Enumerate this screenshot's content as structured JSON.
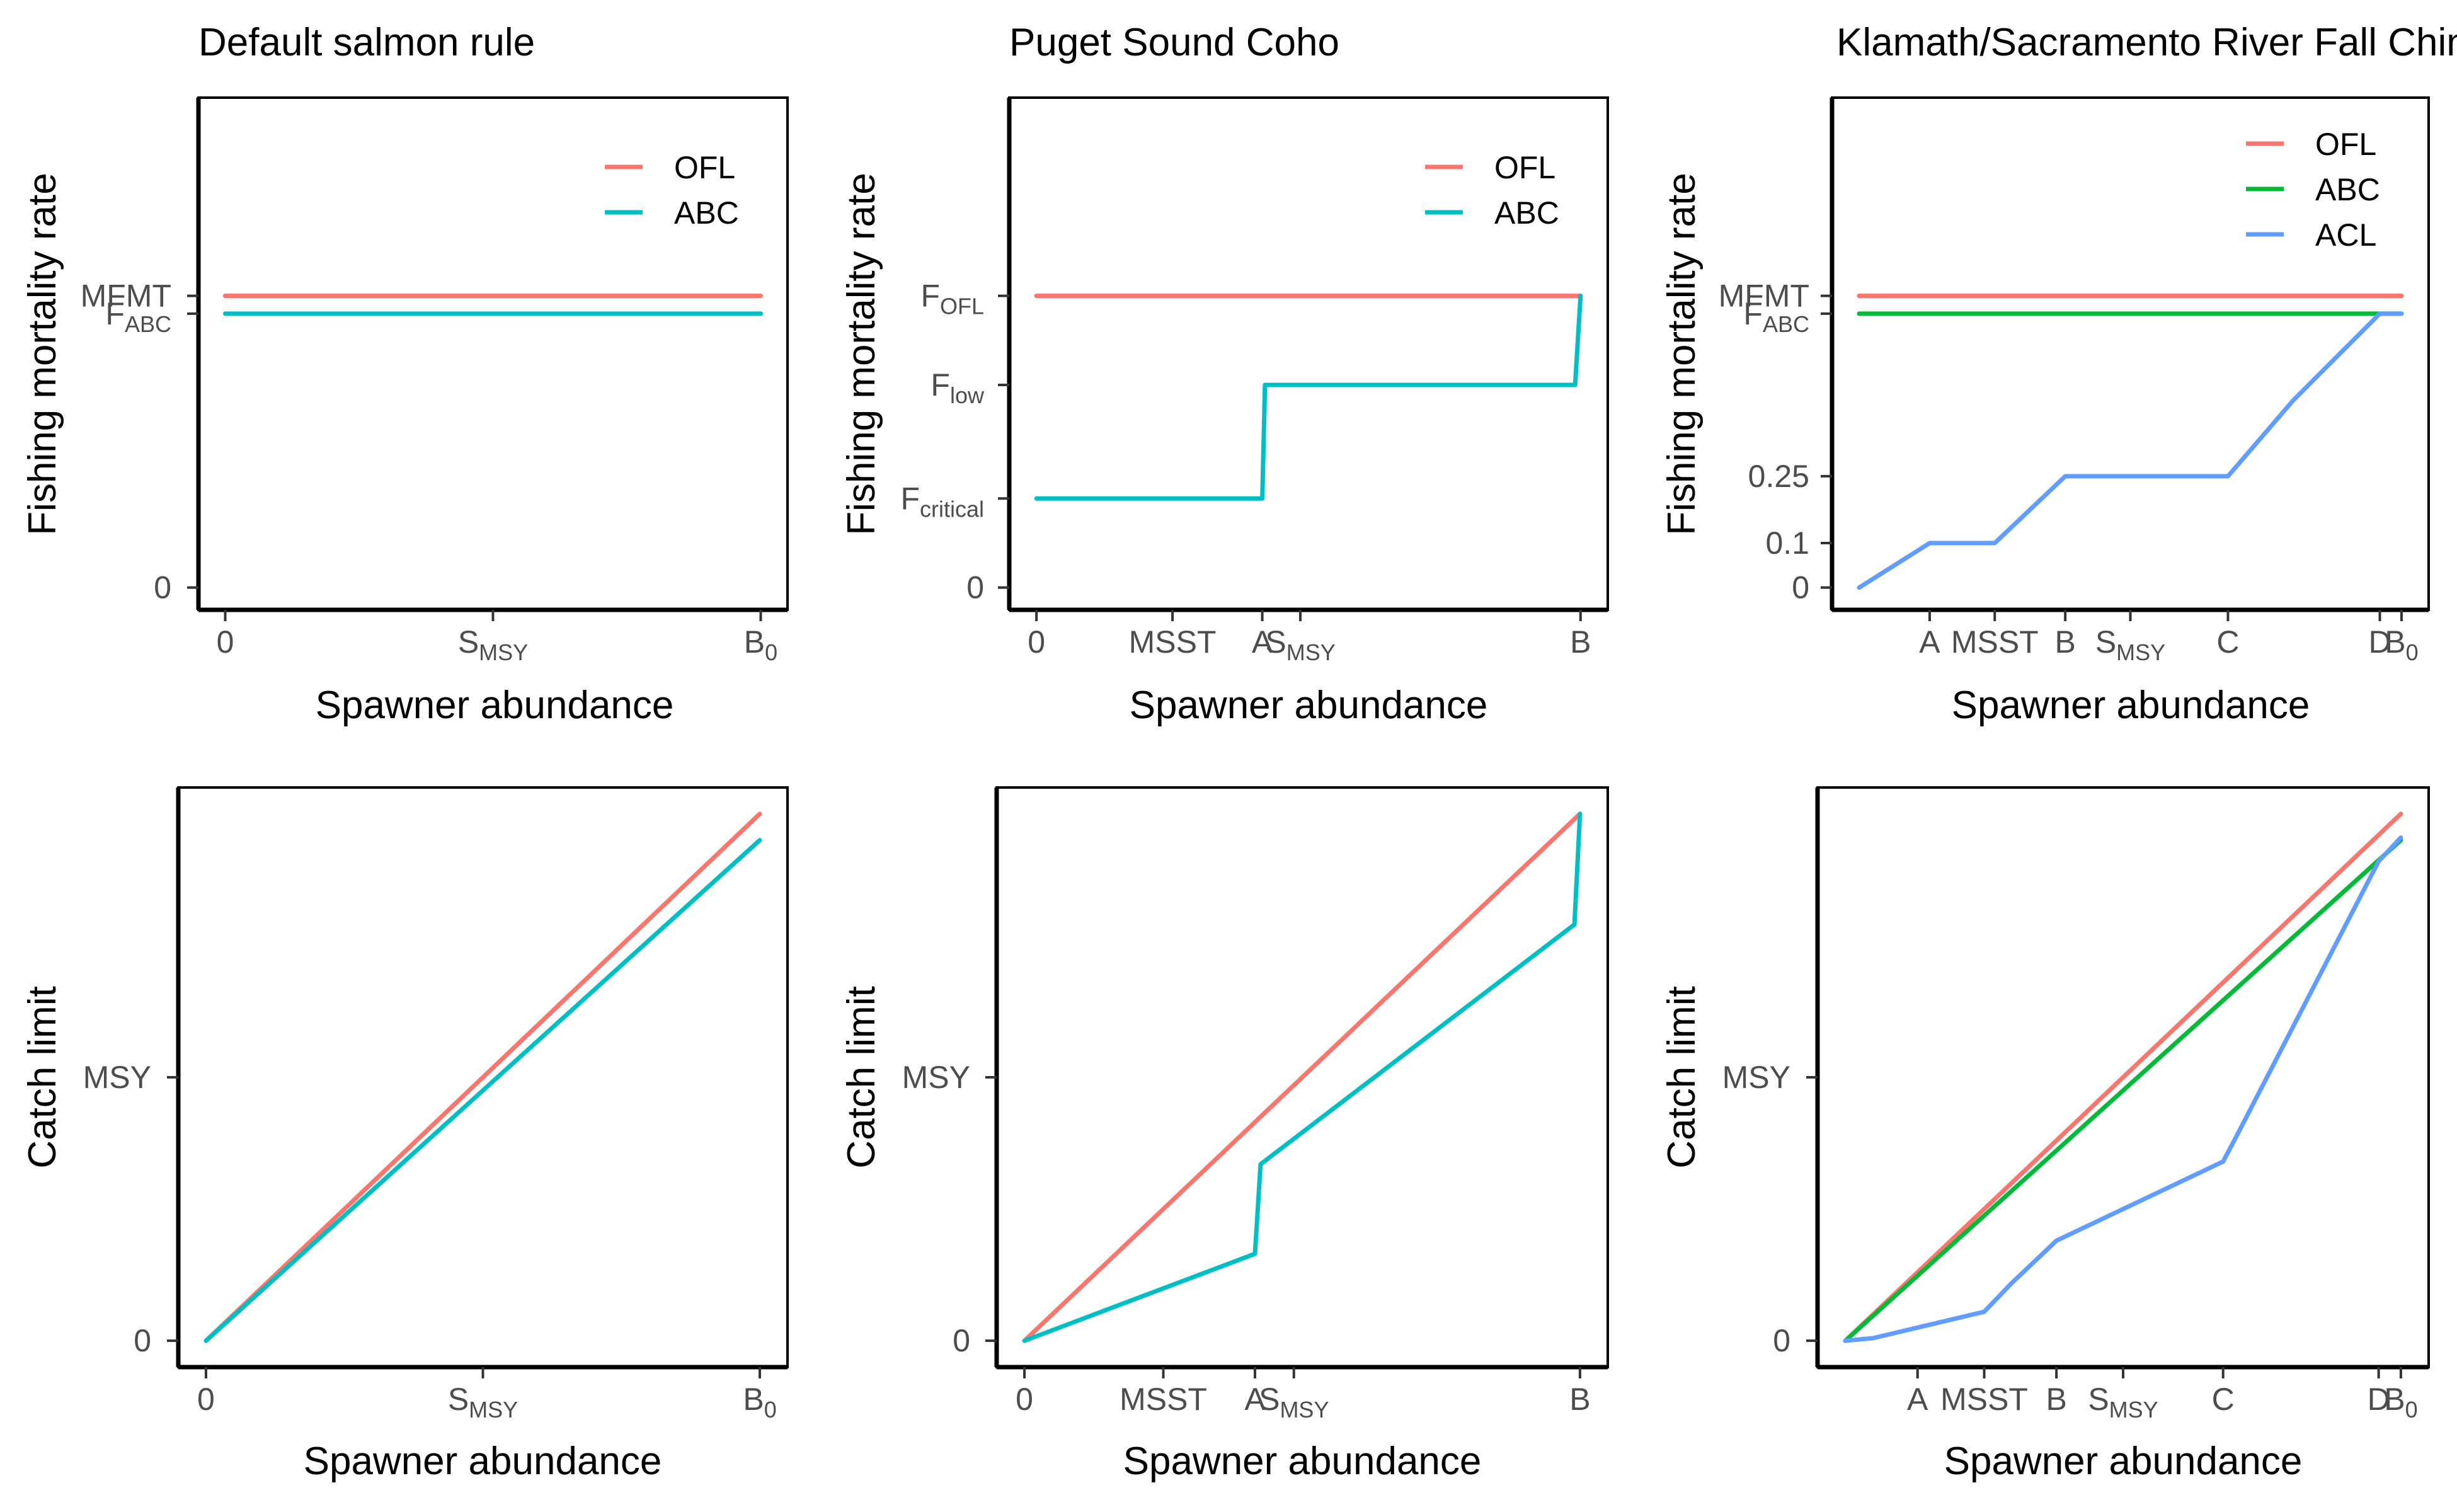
{
  "chart_data": [
    {
      "id": "p11",
      "type": "line",
      "title": "Default salmon rule",
      "xlabel": "Spawner abundance",
      "ylabel": "Fishing mortality rate",
      "xlim": [
        -0.05,
        1.05
      ],
      "ylim": [
        -0.05,
        1.1
      ],
      "xticks": [
        {
          "value": 0,
          "label": "0",
          "sub": ""
        },
        {
          "value": 0.5,
          "label": "S",
          "sub": "MSY"
        },
        {
          "value": 1,
          "label": "B",
          "sub": "0"
        }
      ],
      "yticks": [
        {
          "value": 0,
          "label": "0",
          "sub": ""
        },
        {
          "value": 0.615,
          "label": "F",
          "sub": "ABC"
        },
        {
          "value": 0.655,
          "label": "MFMT",
          "sub": ""
        }
      ],
      "series": [
        {
          "name": "OFL",
          "color": "#F8766D",
          "x": [
            0,
            1
          ],
          "y": [
            0.655,
            0.655
          ]
        },
        {
          "name": "ABC",
          "color": "#00BFC4",
          "x": [
            0,
            1
          ],
          "y": [
            0.615,
            0.615
          ]
        }
      ],
      "legend": [
        "OFL",
        "ABC"
      ],
      "legend_position": "top-right",
      "grid": false
    },
    {
      "id": "p12",
      "type": "line",
      "title": "Puget Sound Coho",
      "xlabel": "Spawner abundance",
      "ylabel": "Fishing mortality rate",
      "xlim": [
        -0.05,
        1.05
      ],
      "ylim": [
        -0.05,
        1.1
      ],
      "xticks": [
        {
          "value": 0,
          "label": "0",
          "sub": ""
        },
        {
          "value": 0.25,
          "label": "MSST",
          "sub": ""
        },
        {
          "value": 0.415,
          "label": "A",
          "sub": ""
        },
        {
          "value": 0.485,
          "label": "S",
          "sub": "MSY"
        },
        {
          "value": 1,
          "label": "B",
          "sub": ""
        }
      ],
      "yticks": [
        {
          "value": 0,
          "label": "0",
          "sub": ""
        },
        {
          "value": 0.2,
          "label": "F",
          "sub": "critical"
        },
        {
          "value": 0.455,
          "label": "F",
          "sub": "low"
        },
        {
          "value": 0.655,
          "label": "F",
          "sub": "OFL"
        }
      ],
      "series": [
        {
          "name": "OFL",
          "color": "#F8766D",
          "x": [
            0,
            1
          ],
          "y": [
            0.655,
            0.655
          ]
        },
        {
          "name": "ABC",
          "color": "#00BFC4",
          "x": [
            0,
            0.415,
            0.42,
            0.99,
            1.0
          ],
          "y": [
            0.2,
            0.2,
            0.455,
            0.455,
            0.655
          ]
        }
      ],
      "legend": [
        "OFL",
        "ABC"
      ],
      "legend_position": "top-right",
      "grid": false
    },
    {
      "id": "p13",
      "type": "line",
      "title": "Klamath/Sacramento River Fall Chinook",
      "xlabel": "Spawner abundance",
      "ylabel": "Fishing mortality rate",
      "xlim": [
        -0.05,
        1.05
      ],
      "ylim": [
        -0.05,
        1.1
      ],
      "xticks": [
        {
          "value": 0.13,
          "label": "A",
          "sub": ""
        },
        {
          "value": 0.25,
          "label": "MSST",
          "sub": ""
        },
        {
          "value": 0.38,
          "label": "B",
          "sub": ""
        },
        {
          "value": 0.5,
          "label": "S",
          "sub": "MSY"
        },
        {
          "value": 0.68,
          "label": "C",
          "sub": ""
        },
        {
          "value": 0.96,
          "label": "D",
          "sub": ""
        },
        {
          "value": 1.0,
          "label": "B",
          "sub": "0"
        }
      ],
      "yticks": [
        {
          "value": 0,
          "label": "0",
          "sub": ""
        },
        {
          "value": 0.1,
          "label": "0.1",
          "sub": ""
        },
        {
          "value": 0.25,
          "label": "0.25",
          "sub": ""
        },
        {
          "value": 0.615,
          "label": "F",
          "sub": "ABC"
        },
        {
          "value": 0.655,
          "label": "MFMT",
          "sub": ""
        }
      ],
      "series": [
        {
          "name": "OFL",
          "color": "#F8766D",
          "x": [
            0,
            1
          ],
          "y": [
            0.655,
            0.655
          ]
        },
        {
          "name": "ABC",
          "color": "#00BA38",
          "x": [
            0,
            1
          ],
          "y": [
            0.615,
            0.615
          ]
        },
        {
          "name": "ACL",
          "color": "#619CFF",
          "x": [
            0,
            0.13,
            0.25,
            0.38,
            0.68,
            0.8,
            0.96,
            1.0
          ],
          "y": [
            0,
            0.1,
            0.1,
            0.25,
            0.25,
            0.42,
            0.615,
            0.615
          ]
        }
      ],
      "legend": [
        "OFL",
        "ABC",
        "ACL"
      ],
      "legend_position": "top-right",
      "grid": false
    },
    {
      "id": "p21",
      "type": "line",
      "title": "",
      "xlabel": "Spawner abundance",
      "ylabel": "Catch limit",
      "xlim": [
        -0.05,
        1.05
      ],
      "ylim": [
        -0.05,
        1.05
      ],
      "xticks": [
        {
          "value": 0,
          "label": "0",
          "sub": ""
        },
        {
          "value": 0.5,
          "label": "S",
          "sub": "MSY"
        },
        {
          "value": 1,
          "label": "B",
          "sub": "0"
        }
      ],
      "yticks": [
        {
          "value": 0,
          "label": "0",
          "sub": ""
        },
        {
          "value": 0.5,
          "label": "MSY",
          "sub": ""
        }
      ],
      "series": [
        {
          "name": "OFL",
          "color": "#F8766D",
          "x": [
            0,
            1
          ],
          "y": [
            0,
            1
          ]
        },
        {
          "name": "ABC",
          "color": "#00BFC4",
          "x": [
            0,
            1
          ],
          "y": [
            0,
            0.95
          ]
        }
      ],
      "legend": [],
      "grid": false
    },
    {
      "id": "p22",
      "type": "line",
      "title": "",
      "xlabel": "Spawner abundance",
      "ylabel": "Catch limit",
      "xlim": [
        -0.05,
        1.05
      ],
      "ylim": [
        -0.05,
        1.05
      ],
      "xticks": [
        {
          "value": 0,
          "label": "0",
          "sub": ""
        },
        {
          "value": 0.25,
          "label": "MSST",
          "sub": ""
        },
        {
          "value": 0.415,
          "label": "A",
          "sub": ""
        },
        {
          "value": 0.485,
          "label": "S",
          "sub": "MSY"
        },
        {
          "value": 1,
          "label": "B",
          "sub": ""
        }
      ],
      "yticks": [
        {
          "value": 0,
          "label": "0",
          "sub": ""
        },
        {
          "value": 0.5,
          "label": "MSY",
          "sub": ""
        }
      ],
      "series": [
        {
          "name": "OFL",
          "color": "#F8766D",
          "x": [
            0,
            1
          ],
          "y": [
            0,
            1
          ]
        },
        {
          "name": "ABC",
          "color": "#00BFC4",
          "x": [
            0,
            0.415,
            0.425,
            0.99,
            1.0
          ],
          "y": [
            0,
            0.165,
            0.335,
            0.79,
            1.0
          ]
        }
      ],
      "legend": [],
      "grid": false
    },
    {
      "id": "p23",
      "type": "line",
      "title": "",
      "xlabel": "Spawner abundance",
      "ylabel": "Catch limit",
      "xlim": [
        -0.05,
        1.05
      ],
      "ylim": [
        -0.05,
        1.05
      ],
      "xticks": [
        {
          "value": 0.13,
          "label": "A",
          "sub": ""
        },
        {
          "value": 0.25,
          "label": "MSST",
          "sub": ""
        },
        {
          "value": 0.38,
          "label": "B",
          "sub": ""
        },
        {
          "value": 0.5,
          "label": "S",
          "sub": "MSY"
        },
        {
          "value": 0.68,
          "label": "C",
          "sub": ""
        },
        {
          "value": 0.96,
          "label": "D",
          "sub": ""
        },
        {
          "value": 1.0,
          "label": "B",
          "sub": "0"
        }
      ],
      "yticks": [
        {
          "value": 0,
          "label": "0",
          "sub": ""
        },
        {
          "value": 0.5,
          "label": "MSY",
          "sub": ""
        }
      ],
      "series": [
        {
          "name": "OFL",
          "color": "#F8766D",
          "x": [
            0,
            1
          ],
          "y": [
            0,
            1
          ]
        },
        {
          "name": "ABC",
          "color": "#00BA38",
          "x": [
            0,
            1
          ],
          "y": [
            0,
            0.95
          ]
        },
        {
          "name": "ACL",
          "color": "#619CFF",
          "x": [
            0,
            0.05,
            0.13,
            0.25,
            0.3,
            0.38,
            0.68,
            0.7,
            0.96,
            1.0
          ],
          "y": [
            0,
            0.005,
            0.025,
            0.055,
            0.11,
            0.19,
            0.34,
            0.38,
            0.91,
            0.955
          ]
        }
      ],
      "legend": [],
      "grid": false
    }
  ]
}
